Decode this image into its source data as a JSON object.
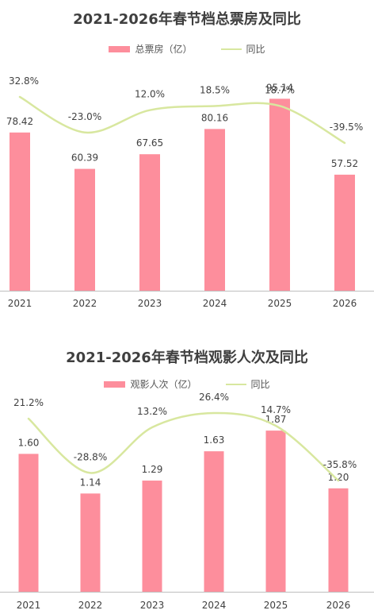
{
  "colors": {
    "bar": "#fd8e9c",
    "line": "#d8e79f",
    "text": "#404040",
    "axis": "#bfbfbf"
  },
  "chart_data": [
    {
      "type": "bar",
      "title": "2021-2026年春节档总票房及同比",
      "legend_bar": "总票房（亿）",
      "legend_line": "同比",
      "categories": [
        "2021",
        "2022",
        "2023",
        "2024",
        "2025",
        "2026"
      ],
      "values": [
        78.42,
        60.39,
        67.65,
        80.16,
        95.14,
        57.52
      ],
      "value_labels": [
        "78.42",
        "60.39",
        "67.65",
        "80.16",
        "95.14",
        "57.52"
      ],
      "yoy": [
        32.8,
        -23.0,
        12.0,
        18.5,
        18.7,
        -39.5
      ],
      "yoy_labels": [
        "32.8%",
        "-23.0%",
        "12.0%",
        "18.5%",
        "18.7%",
        "-39.5%"
      ],
      "ylim": [
        0,
        100
      ],
      "legend_position": "top"
    },
    {
      "type": "bar",
      "title": "2021-2026年春节档观影人次及同比",
      "legend_bar": "观影人次（亿）",
      "legend_line": "同比",
      "categories": [
        "2021",
        "2022",
        "2023",
        "2024",
        "2025",
        "2026"
      ],
      "values": [
        1.6,
        1.14,
        1.29,
        1.63,
        1.87,
        1.2
      ],
      "value_labels": [
        "1.60",
        "1.14",
        "1.29",
        "1.63",
        "1.87",
        "1.20"
      ],
      "yoy": [
        21.2,
        -28.8,
        13.2,
        26.4,
        14.7,
        -35.8
      ],
      "yoy_labels": [
        "21.2%",
        "-28.8%",
        "13.2%",
        "26.4%",
        "14.7%",
        "-35.8%"
      ],
      "ylim": [
        0,
        2
      ],
      "legend_position": "top"
    }
  ]
}
